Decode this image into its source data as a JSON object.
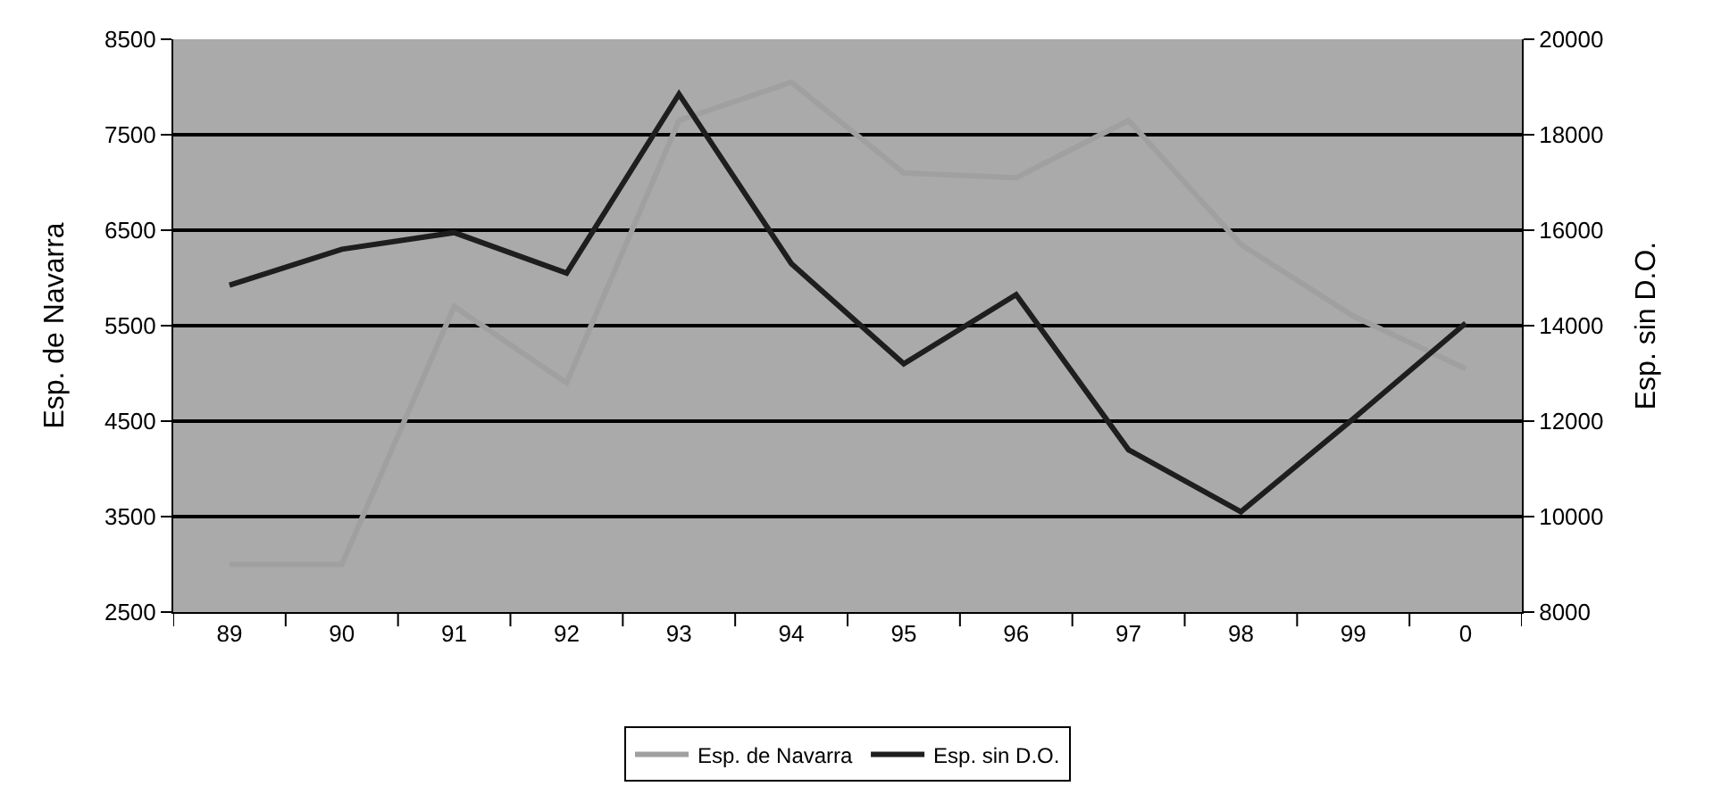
{
  "chart_data": {
    "type": "line",
    "ylabel": "Esp. de Navarra",
    "y2label": "Esp. sin D.O.",
    "categories": [
      "89",
      "90",
      "91",
      "92",
      "93",
      "94",
      "95",
      "96",
      "97",
      "98",
      "99",
      "0"
    ],
    "series": [
      {
        "name": "Esp. de Navarra",
        "color": "#a0a0a0",
        "values": [
          3000,
          3000,
          5700,
          4900,
          7650,
          8050,
          7100,
          7050,
          7650,
          6350,
          5600,
          5050
        ]
      },
      {
        "name": "Esp. sin D.O.",
        "color": "#1e1e1e",
        "axis": "y2",
        "values": [
          14850,
          15600,
          15950,
          15100,
          18850,
          15300,
          13200,
          14650,
          11400,
          10100,
          12050,
          14050
        ]
      }
    ],
    "ylim": [
      2500,
      8500
    ],
    "yticks": [
      2500,
      3500,
      4500,
      5500,
      6500,
      7500,
      8500
    ],
    "y2lim": [
      8000,
      20000
    ],
    "y2ticks": [
      8000,
      10000,
      12000,
      14000,
      16000,
      18000,
      20000
    ],
    "grid": "y",
    "legend": "bottom",
    "marker": "none",
    "line_style": "solid"
  }
}
